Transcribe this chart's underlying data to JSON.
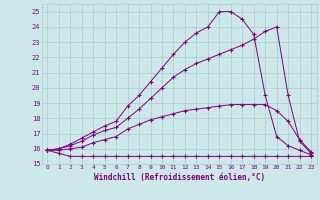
{
  "xlabel": "Windchill (Refroidissement éolien,°C)",
  "xlim": [
    -0.5,
    23.5
  ],
  "ylim": [
    15,
    25.5
  ],
  "xticks": [
    0,
    1,
    2,
    3,
    4,
    5,
    6,
    7,
    8,
    9,
    10,
    11,
    12,
    13,
    14,
    15,
    16,
    17,
    18,
    19,
    20,
    21,
    22,
    23
  ],
  "yticks": [
    15,
    16,
    17,
    18,
    19,
    20,
    21,
    22,
    23,
    24,
    25
  ],
  "background_color": "#cce8e8",
  "grid_color": "#aacccc",
  "line_color": "#800080",
  "lines": [
    [
      15.9,
      15.7,
      15.5,
      15.5,
      15.5,
      15.5,
      15.5,
      15.5,
      15.5,
      15.5,
      15.5,
      15.5,
      15.5,
      15.5,
      15.5,
      15.5,
      15.5,
      15.5,
      15.5,
      15.5,
      15.5,
      15.5,
      15.5,
      15.5
    ],
    [
      15.9,
      15.9,
      16.0,
      16.1,
      16.4,
      16.6,
      16.8,
      17.3,
      17.6,
      17.9,
      18.1,
      18.3,
      18.5,
      18.6,
      18.7,
      18.8,
      18.9,
      18.9,
      18.9,
      18.9,
      18.5,
      17.8,
      16.6,
      15.8
    ],
    [
      15.9,
      16.0,
      16.2,
      16.5,
      16.9,
      17.2,
      17.4,
      18.0,
      18.6,
      19.3,
      20.0,
      20.7,
      21.2,
      21.6,
      21.9,
      22.2,
      22.5,
      22.8,
      23.2,
      23.7,
      24.0,
      19.5,
      16.5,
      15.7
    ],
    [
      15.9,
      16.0,
      16.3,
      16.7,
      17.1,
      17.5,
      17.8,
      18.8,
      19.5,
      20.4,
      21.3,
      22.2,
      23.0,
      23.6,
      24.0,
      25.0,
      25.0,
      24.5,
      23.5,
      19.5,
      16.8,
      16.2,
      15.9,
      15.6
    ]
  ]
}
